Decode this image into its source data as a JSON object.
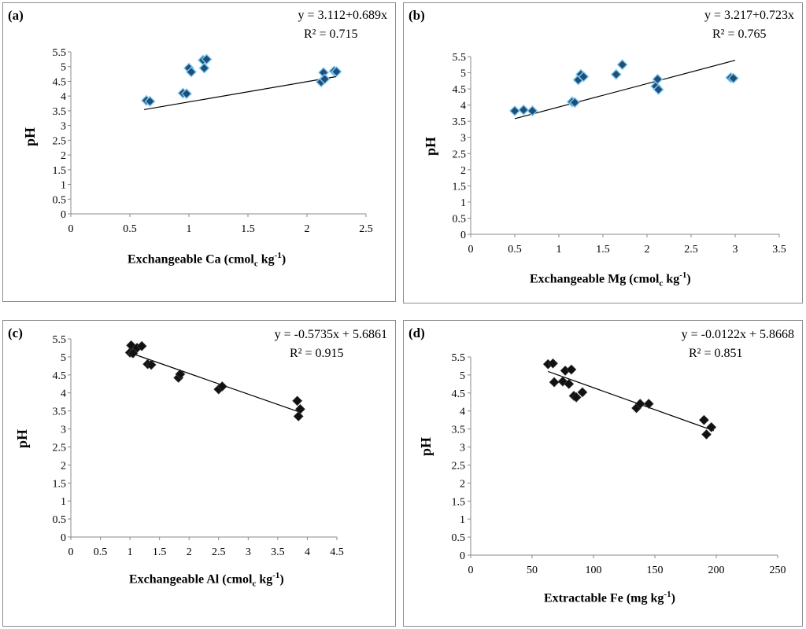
{
  "chart_data": [
    {
      "type": "scatter",
      "panel_label": "(a)",
      "xlabel_prefix": "Exchangeable  Ca (cmol",
      "xlabel_sub": "c",
      "xlabel_mid": " kg",
      "xlabel_sup": "-1",
      "xlabel_suffix": ")",
      "ylabel": "pH",
      "equation": "y = 3.112+0.689x",
      "r2": "R² = 0.715",
      "xlim": [
        0,
        2.5
      ],
      "ylim": [
        0,
        5.5
      ],
      "xticks": [
        "0",
        "0.5",
        "1",
        "1.5",
        "2",
        "2.5"
      ],
      "yticks": [
        "0",
        "0.5",
        "1",
        "1.5",
        "2",
        "2.5",
        "3",
        "3.5",
        "4",
        "4.5",
        "5",
        "5.5"
      ],
      "marker": "diamond-blue",
      "trend": {
        "intercept": 3.112,
        "slope": 0.689,
        "x_range": [
          0.62,
          2.25
        ]
      },
      "points": [
        {
          "x": 0.64,
          "y": 3.85
        },
        {
          "x": 0.67,
          "y": 3.82
        },
        {
          "x": 0.95,
          "y": 4.1
        },
        {
          "x": 0.98,
          "y": 4.08
        },
        {
          "x": 1.0,
          "y": 4.95
        },
        {
          "x": 1.02,
          "y": 4.82
        },
        {
          "x": 1.12,
          "y": 5.22
        },
        {
          "x": 1.13,
          "y": 4.95
        },
        {
          "x": 1.15,
          "y": 5.25
        },
        {
          "x": 2.12,
          "y": 4.48
        },
        {
          "x": 2.14,
          "y": 4.8
        },
        {
          "x": 2.15,
          "y": 4.58
        },
        {
          "x": 2.23,
          "y": 4.85
        },
        {
          "x": 2.25,
          "y": 4.83
        }
      ]
    },
    {
      "type": "scatter",
      "panel_label": "(b)",
      "xlabel_prefix": "Exchangeable  Mg (cmol",
      "xlabel_sub": "c",
      "xlabel_mid": " kg",
      "xlabel_sup": "-1",
      "xlabel_suffix": ")",
      "ylabel": "pH",
      "equation": "y = 3.217+0.723x",
      "r2": "R² = 0.765",
      "xlim": [
        0,
        3.5
      ],
      "ylim": [
        0,
        5.5
      ],
      "xticks": [
        "0",
        "0.5",
        "1",
        "1.5",
        "2",
        "2.5",
        "3",
        "3.5"
      ],
      "yticks": [
        "0",
        "0.5",
        "1",
        "1.5",
        "2",
        "2.5",
        "3",
        "3.5",
        "4",
        "4.5",
        "5",
        "5.5"
      ],
      "marker": "diamond-blue",
      "trend": {
        "intercept": 3.217,
        "slope": 0.723,
        "x_range": [
          0.5,
          3.0
        ]
      },
      "points": [
        {
          "x": 0.5,
          "y": 3.82
        },
        {
          "x": 0.6,
          "y": 3.85
        },
        {
          "x": 0.7,
          "y": 3.82
        },
        {
          "x": 1.15,
          "y": 4.1
        },
        {
          "x": 1.18,
          "y": 4.08
        },
        {
          "x": 1.22,
          "y": 4.78
        },
        {
          "x": 1.25,
          "y": 4.95
        },
        {
          "x": 1.28,
          "y": 4.88
        },
        {
          "x": 1.65,
          "y": 4.95
        },
        {
          "x": 1.72,
          "y": 5.25
        },
        {
          "x": 2.1,
          "y": 4.58
        },
        {
          "x": 2.12,
          "y": 4.8
        },
        {
          "x": 2.13,
          "y": 4.48
        },
        {
          "x": 2.95,
          "y": 4.85
        },
        {
          "x": 2.98,
          "y": 4.83
        }
      ]
    },
    {
      "type": "scatter",
      "panel_label": "(c)",
      "xlabel_prefix": "Exchangeable Al (cmol",
      "xlabel_sub": "c",
      "xlabel_mid": " kg",
      "xlabel_sup": "-1",
      "xlabel_suffix": ")",
      "ylabel": "pH",
      "equation": "y = -0.5735x + 5.6861",
      "r2": "R² = 0.915",
      "xlim": [
        0,
        4.5
      ],
      "ylim": [
        0,
        5.5
      ],
      "xticks": [
        "0",
        "0.5",
        "1",
        "1.5",
        "2",
        "2.5",
        "3",
        "3.5",
        "4",
        "4.5"
      ],
      "yticks": [
        "0",
        "0.5",
        "1",
        "1.5",
        "2",
        "2.5",
        "3",
        "3.5",
        "4",
        "4.5",
        "5",
        "5.5"
      ],
      "marker": "diamond-black",
      "trend": {
        "intercept": 5.6861,
        "slope": -0.5735,
        "x_range": [
          1.0,
          3.9
        ]
      },
      "points": [
        {
          "x": 1.0,
          "y": 5.12
        },
        {
          "x": 1.02,
          "y": 5.32
        },
        {
          "x": 1.05,
          "y": 5.1
        },
        {
          "x": 1.12,
          "y": 5.25
        },
        {
          "x": 1.2,
          "y": 5.3
        },
        {
          "x": 1.3,
          "y": 4.8
        },
        {
          "x": 1.36,
          "y": 4.78
        },
        {
          "x": 1.82,
          "y": 4.42
        },
        {
          "x": 1.85,
          "y": 4.52
        },
        {
          "x": 2.5,
          "y": 4.1
        },
        {
          "x": 2.56,
          "y": 4.18
        },
        {
          "x": 3.83,
          "y": 3.78
        },
        {
          "x": 3.85,
          "y": 3.35
        },
        {
          "x": 3.88,
          "y": 3.55
        }
      ]
    },
    {
      "type": "scatter",
      "panel_label": "(d)",
      "xlabel_prefix": "Extractable  Fe (mg kg",
      "xlabel_sub": "",
      "xlabel_mid": "",
      "xlabel_sup": "-1",
      "xlabel_suffix": ")",
      "ylabel": "pH",
      "equation": "y = -0.0122x + 5.8668",
      "r2": "R² = 0.851",
      "xlim": [
        0,
        250
      ],
      "ylim": [
        0,
        5.5
      ],
      "xticks": [
        "0",
        "50",
        "100",
        "150",
        "200",
        "250"
      ],
      "yticks": [
        "0",
        "0.5",
        "1",
        "1.5",
        "2",
        "2.5",
        "3",
        "3.5",
        "4",
        "4.5",
        "5",
        "5.5"
      ],
      "marker": "diamond-black",
      "trend": {
        "intercept": 5.8668,
        "slope": -0.0122,
        "x_range": [
          63,
          198
        ]
      },
      "points": [
        {
          "x": 63,
          "y": 5.3
        },
        {
          "x": 67,
          "y": 5.32
        },
        {
          "x": 68,
          "y": 4.8
        },
        {
          "x": 75,
          "y": 4.82
        },
        {
          "x": 77,
          "y": 5.12
        },
        {
          "x": 80,
          "y": 4.75
        },
        {
          "x": 82,
          "y": 5.15
        },
        {
          "x": 84,
          "y": 4.42
        },
        {
          "x": 86,
          "y": 4.38
        },
        {
          "x": 91,
          "y": 4.52
        },
        {
          "x": 135,
          "y": 4.08
        },
        {
          "x": 138,
          "y": 4.2
        },
        {
          "x": 145,
          "y": 4.2
        },
        {
          "x": 190,
          "y": 3.75
        },
        {
          "x": 192,
          "y": 3.35
        },
        {
          "x": 196,
          "y": 3.55
        }
      ]
    }
  ]
}
